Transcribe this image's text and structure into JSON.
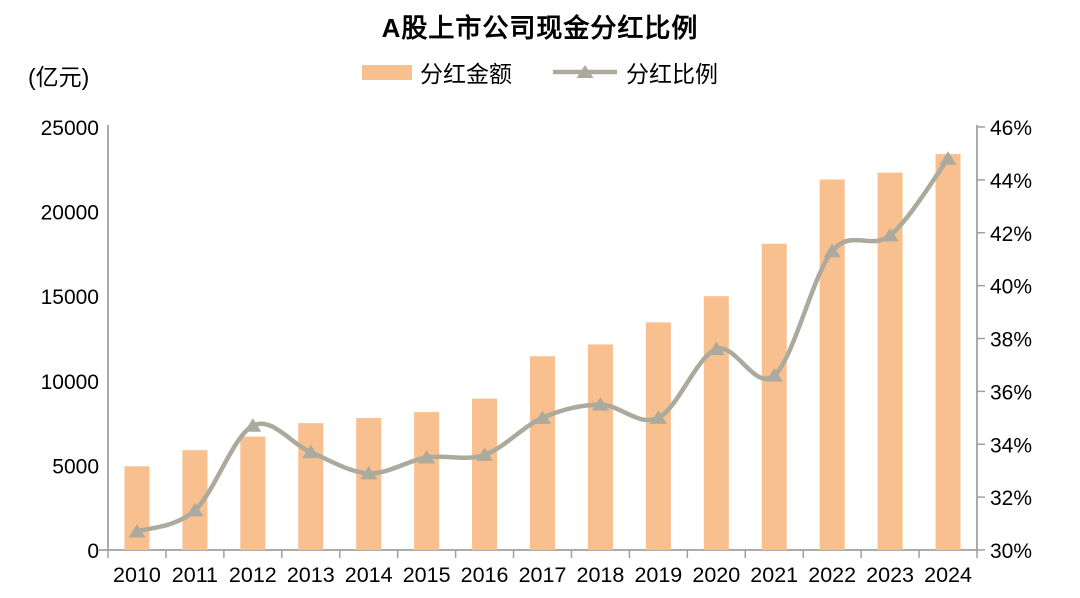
{
  "title": "A股上市公司现金分红比例",
  "left_axis_unit": "(亿元)",
  "colors": {
    "bar": "#F8C08E",
    "line": "#ACAA9D",
    "axis": "#A0A0A0",
    "text": "#000000",
    "background": "#FFFFFF"
  },
  "chart_data": {
    "type": "combo-bar-line-dual-axis",
    "title": "A股上市公司现金分红比例",
    "categories": [
      "2010",
      "2011",
      "2012",
      "2013",
      "2014",
      "2015",
      "2016",
      "2017",
      "2018",
      "2019",
      "2020",
      "2021",
      "2022",
      "2023",
      "2024"
    ],
    "series": [
      {
        "name": "分红金额",
        "type": "bar",
        "axis": "left",
        "unit": "亿元",
        "color": "#F8C08E",
        "values": [
          4950,
          5900,
          6700,
          7500,
          7800,
          8150,
          8950,
          11450,
          12150,
          13450,
          15000,
          18100,
          21900,
          22300,
          23400
        ]
      },
      {
        "name": "分红比例",
        "type": "line",
        "axis": "right",
        "unit": "%",
        "color": "#ACAA9D",
        "marker": "triangle-up",
        "smooth": true,
        "values": [
          30.7,
          31.5,
          34.7,
          33.7,
          32.9,
          33.5,
          33.6,
          35.0,
          35.5,
          35.0,
          37.6,
          36.6,
          41.3,
          41.9,
          44.8
        ]
      }
    ],
    "left_axis": {
      "title": "(亿元)",
      "min": 0,
      "max": 25000,
      "tick_step": 5000,
      "ticks": [
        0,
        5000,
        10000,
        15000,
        20000,
        25000
      ]
    },
    "right_axis": {
      "min": 30,
      "max": 46,
      "tick_step": 2,
      "suffix": "%",
      "ticks": [
        30,
        32,
        34,
        36,
        38,
        40,
        42,
        44,
        46
      ]
    },
    "grid": false,
    "legend_position": "top-center"
  }
}
